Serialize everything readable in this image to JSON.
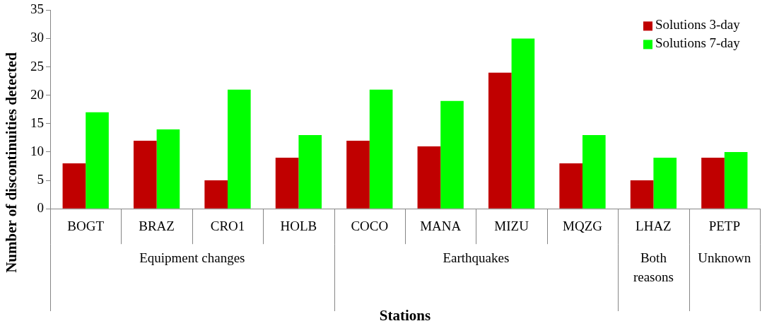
{
  "chart_data": {
    "type": "bar",
    "xlabel": "Stations",
    "ylabel": "Number of discontinuities detected",
    "categories": [
      "BOGT",
      "BRAZ",
      "CRO1",
      "HOLB",
      "COCO",
      "MANA",
      "MIZU",
      "MQZG",
      "LHAZ",
      "PETP"
    ],
    "series": [
      {
        "name": "Solutions 3-day",
        "color": "#c00000",
        "values": [
          8,
          12,
          5,
          9,
          12,
          11,
          24,
          8,
          5,
          9
        ]
      },
      {
        "name": "Solutions 7-day",
        "color": "#00ff00",
        "values": [
          17,
          14,
          21,
          13,
          21,
          19,
          30,
          13,
          9,
          10
        ]
      }
    ],
    "ylim": [
      0,
      35
    ],
    "yticks": [
      0,
      5,
      10,
      15,
      20,
      25,
      30,
      35
    ],
    "grid": false,
    "legend": "top right",
    "annotations": [
      "Equipment changes",
      "Earthquakes",
      "Both reasons",
      "Unknown"
    ]
  }
}
